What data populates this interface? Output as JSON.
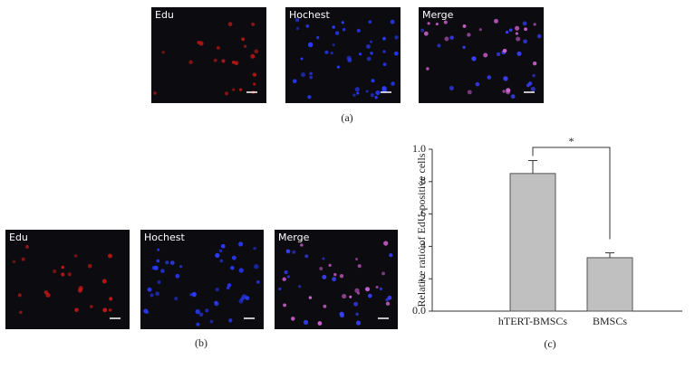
{
  "panels": {
    "a": {
      "images": [
        "Edu",
        "Hochest",
        "Merge"
      ],
      "caption": "(a)"
    },
    "b": {
      "images": [
        "Edu",
        "Hochest",
        "Merge"
      ],
      "caption": "(b)"
    }
  },
  "chart_data": {
    "type": "bar",
    "ylabel": "Relative ratio of EdU-positive cells",
    "categories": [
      "hTERT-BMSCs",
      "BMSCs"
    ],
    "values": [
      0.85,
      0.33
    ],
    "errors": [
      0.08,
      0.03
    ],
    "color": "#c0c0c0",
    "ylim": [
      0,
      1.0
    ],
    "yticks": [
      {
        "value": 0,
        "label": "0.0"
      },
      {
        "value": 0.2,
        "label": ".2"
      },
      {
        "value": 0.4,
        "label": ".4"
      },
      {
        "value": 0.6,
        "label": ".6"
      },
      {
        "value": 0.8,
        "label": ".8"
      },
      {
        "value": 1.0,
        "label": "1.0"
      }
    ],
    "annotation": "*",
    "caption": "(c)"
  }
}
